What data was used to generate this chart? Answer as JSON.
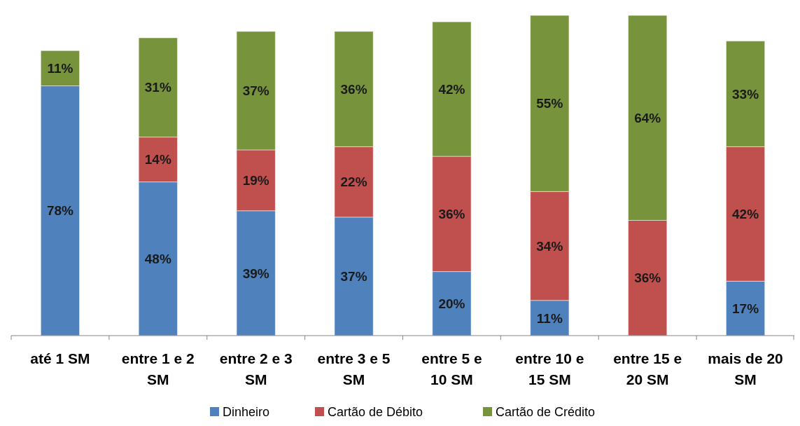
{
  "chart_data": {
    "type": "bar",
    "stacked": true,
    "legend": "bottom",
    "categories": [
      "até 1 SM",
      "entre 1 e 2 SM",
      "entre 2 e 3 SM",
      "entre 3 e 5 SM",
      "entre 5 e 10 SM",
      "entre 10 e 15 SM",
      "entre 15 e 20 SM",
      "mais de 20 SM"
    ],
    "series": [
      {
        "name": "Dinheiro",
        "color": "#4f81bd",
        "values": [
          78,
          48,
          39,
          37,
          20,
          11,
          null,
          17
        ],
        "value_labels": [
          "78%",
          "48%",
          "39%",
          "37%",
          "20%",
          "11%",
          null,
          "17%"
        ]
      },
      {
        "name": "Cartão de Débito",
        "color": "#c0504d",
        "values": [
          null,
          14,
          19,
          22,
          36,
          34,
          36,
          42
        ],
        "value_labels": [
          null,
          "14%",
          "19%",
          "22%",
          "36%",
          "34%",
          "36%",
          "42%"
        ]
      },
      {
        "name": "Cartão de Crédito",
        "color": "#77933c",
        "values": [
          11,
          31,
          37,
          36,
          42,
          55,
          64,
          33
        ],
        "value_labels": [
          "11%",
          "31%",
          "37%",
          "36%",
          "42%",
          "55%",
          "64%",
          "33%"
        ]
      }
    ]
  }
}
